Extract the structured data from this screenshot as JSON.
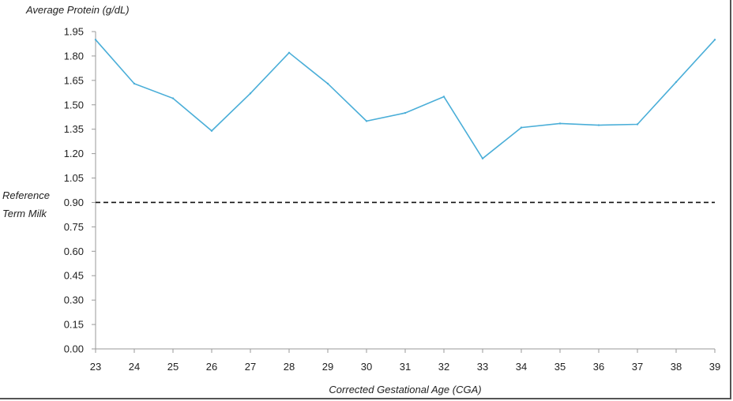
{
  "chart_data": {
    "type": "line",
    "y_title": "Average Protein (g/dL)",
    "xlabel": "Corrected Gestational Age (CGA)",
    "x": [
      23,
      24,
      25,
      26,
      27,
      28,
      29,
      30,
      31,
      32,
      33,
      34,
      35,
      36,
      37,
      38,
      39
    ],
    "series": [
      {
        "values": [
          1.9,
          1.63,
          1.54,
          1.34,
          1.57,
          1.82,
          1.63,
          1.4,
          1.45,
          1.55,
          1.17,
          1.36,
          1.385,
          1.375,
          1.38,
          1.64,
          1.9
        ],
        "color": "#4aaed8"
      }
    ],
    "ylim": [
      0,
      1.95
    ],
    "yticks": [
      "0.00",
      "0.15",
      "0.30",
      "0.45",
      "0.60",
      "0.75",
      "0.90",
      "1.05",
      "1.20",
      "1.35",
      "1.50",
      "1.65",
      "1.80",
      "1.95"
    ],
    "reference_line": {
      "value": 0.9,
      "label_line1": "Reference",
      "label_line2": "Term Milk",
      "style": "dashed",
      "color": "#111111"
    },
    "grid": false,
    "legend": "none"
  }
}
